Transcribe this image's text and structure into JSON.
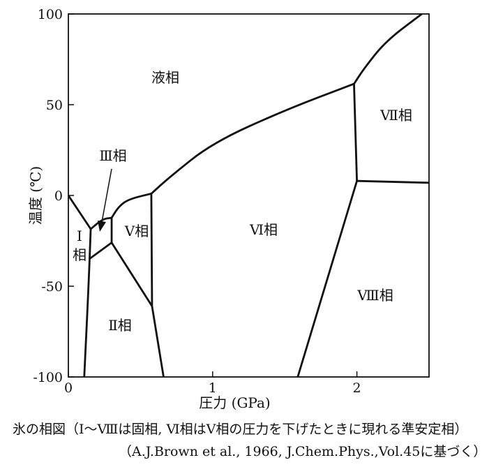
{
  "chart_data": {
    "type": "line",
    "title": "",
    "xlabel": "圧力 (GPa)",
    "ylabel": "温度 (℃)",
    "xlim": [
      0,
      2.5
    ],
    "ylim": [
      -100,
      100
    ],
    "x_ticks": [
      0,
      1,
      2
    ],
    "y_ticks": [
      100,
      50,
      0,
      -50,
      -100
    ],
    "grid": false,
    "line_color": "#111111",
    "boundaries": [
      {
        "between": "I-liquid",
        "points": [
          [
            0,
            0
          ],
          [
            0.155,
            -18.5
          ]
        ]
      },
      {
        "between": "III-liquid",
        "points": [
          [
            0.155,
            -18.5
          ],
          [
            0.237,
            -13
          ],
          [
            0.3,
            -12.3
          ]
        ]
      },
      {
        "between": "V-liquid",
        "points": [
          [
            0.3,
            -12.3
          ],
          [
            0.35,
            -6
          ],
          [
            0.42,
            -2
          ],
          [
            0.575,
            1
          ]
        ]
      },
      {
        "between": "VI-liquid",
        "points": [
          [
            0.575,
            1
          ],
          [
            0.7,
            10
          ],
          [
            1.0,
            29
          ],
          [
            1.5,
            47
          ],
          [
            1.98,
            61.5
          ]
        ]
      },
      {
        "between": "VII-liquid",
        "points": [
          [
            1.98,
            61.5
          ],
          [
            2.05,
            70
          ],
          [
            2.2,
            85
          ],
          [
            2.45,
            100
          ]
        ]
      },
      {
        "between": "I-II",
        "points": [
          [
            0.155,
            -18.5
          ],
          [
            0.14,
            -50
          ],
          [
            0.11,
            -100
          ]
        ]
      },
      {
        "between": "III-II",
        "points": [
          [
            0.145,
            -35
          ],
          [
            0.3,
            -26
          ]
        ]
      },
      {
        "between": "III-V",
        "points": [
          [
            0.3,
            -12.3
          ],
          [
            0.3,
            -26
          ]
        ]
      },
      {
        "between": "II-V",
        "points": [
          [
            0.3,
            -26
          ],
          [
            0.58,
            -61
          ]
        ]
      },
      {
        "between": "V-VI",
        "points": [
          [
            0.575,
            1
          ],
          [
            0.58,
            -61
          ]
        ]
      },
      {
        "between": "II-VI",
        "points": [
          [
            0.58,
            -61
          ],
          [
            0.66,
            -100
          ]
        ]
      },
      {
        "between": "VI-VII",
        "points": [
          [
            1.98,
            61.5
          ],
          [
            2.0,
            8
          ]
        ]
      },
      {
        "between": "VI-VIII",
        "points": [
          [
            2.0,
            8
          ],
          [
            1.59,
            -100
          ]
        ]
      },
      {
        "between": "VII-VIII",
        "points": [
          [
            2.0,
            8
          ],
          [
            2.5,
            7
          ]
        ]
      }
    ],
    "annotations": [
      "液相",
      "Ⅲ相",
      "Ⅰ",
      "相",
      "Ⅴ相",
      "Ⅵ相",
      "Ⅶ相",
      "Ⅱ相",
      "Ⅷ相"
    ]
  },
  "caption": {
    "line1": "氷の相図（Ⅰ～Ⅷは固相, Ⅵ相はⅤ相の圧力を下げたときに現れる準安定相）",
    "line2": "（A.J.Brown et al., 1966, J.Chem.Phys.,Vol.45に基づく）"
  }
}
